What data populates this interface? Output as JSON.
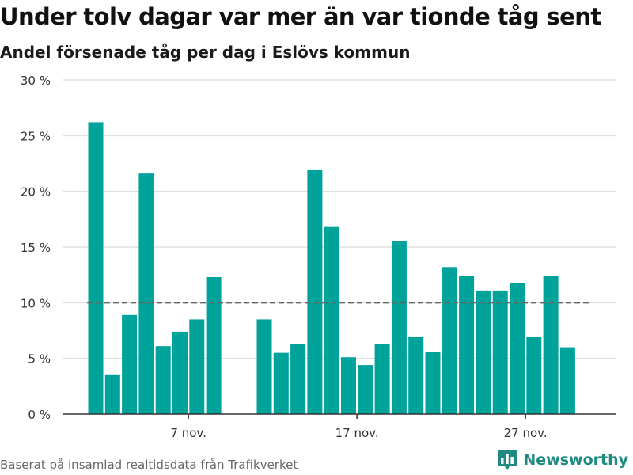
{
  "title": "Under tolv dagar var mer än var tionde tåg sent",
  "subtitle": "Andel försenade tåg per dag i Eslövs kommun",
  "footer": {
    "source": "Baserat på insamlad realtidsdata från Trafikverket",
    "brand": "Newsworthy"
  },
  "colors": {
    "bar": "#00a39a",
    "brand": "#1f8a82",
    "reference_line": "#666666",
    "grid": "#e0e0e0"
  },
  "brand_icon": "bar-chart-logo-icon",
  "chart_data": {
    "type": "bar",
    "title": "Under tolv dagar var mer än var tionde tåg sent",
    "subtitle": "Andel försenade tåg per dag i Eslövs kommun",
    "xlabel": "",
    "ylabel": "",
    "unit": "%",
    "ylim": [
      0,
      30
    ],
    "yticks": [
      0,
      5,
      10,
      15,
      20,
      25,
      30
    ],
    "ytick_labels": [
      "0 %",
      "5 %",
      "10 %",
      "15 %",
      "20 %",
      "25 %",
      "30 %"
    ],
    "xtick_labels": [
      "7 nov.",
      "17 nov.",
      "27 nov."
    ],
    "xtick_dates": [
      "2018-11-07",
      "2018-11-17",
      "2018-11-27"
    ],
    "grid": true,
    "reference_line": 10,
    "dates": [
      "2018-11-01",
      "2018-11-02",
      "2018-11-03",
      "2018-11-04",
      "2018-11-05",
      "2018-11-06",
      "2018-11-07",
      "2018-11-08",
      "2018-11-09",
      "2018-11-10",
      "2018-11-11",
      "2018-11-12",
      "2018-11-13",
      "2018-11-14",
      "2018-11-15",
      "2018-11-16",
      "2018-11-17",
      "2018-11-18",
      "2018-11-19",
      "2018-11-20",
      "2018-11-21",
      "2018-11-22",
      "2018-11-23",
      "2018-11-24",
      "2018-11-25",
      "2018-11-26",
      "2018-11-27",
      "2018-11-28",
      "2018-11-29",
      "2018-11-30"
    ],
    "values": [
      26.2,
      3.5,
      8.9,
      21.6,
      6.1,
      7.4,
      8.5,
      12.3,
      null,
      null,
      8.5,
      5.5,
      6.3,
      21.9,
      16.8,
      5.1,
      4.4,
      6.3,
      15.5,
      6.9,
      5.6,
      13.2,
      12.4,
      11.1,
      11.1,
      11.8,
      6.9,
      12.4,
      6.0,
      null
    ]
  }
}
